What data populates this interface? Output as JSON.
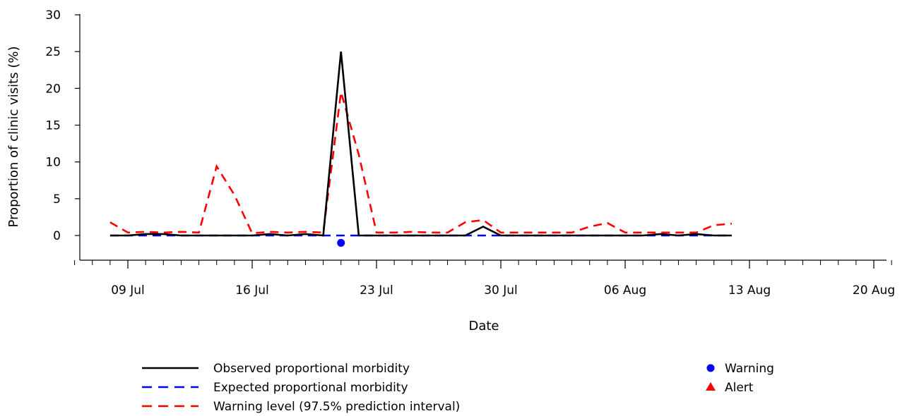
{
  "chart_data": {
    "type": "line",
    "xlabel": "Date",
    "ylabel": "Proportion of clinic visits (%)",
    "ylim": [
      -3,
      31
    ],
    "yticks": [
      0,
      5,
      10,
      15,
      20,
      25,
      30
    ],
    "xlim": [
      "2018-07-06",
      "2018-08-21"
    ],
    "xticks": [
      {
        "date": "2018-07-09",
        "label": "09 Jul"
      },
      {
        "date": "2018-07-16",
        "label": "16 Jul"
      },
      {
        "date": "2018-07-23",
        "label": "23 Jul"
      },
      {
        "date": "2018-07-30",
        "label": "30 Jul"
      },
      {
        "date": "2018-08-06",
        "label": "06 Aug"
      },
      {
        "date": "2018-08-13",
        "label": "13 Aug"
      },
      {
        "date": "2018-08-20",
        "label": "20 Aug"
      }
    ],
    "grid": false,
    "legend_position": "bottom",
    "x": [
      "2018-07-08",
      "2018-07-09",
      "2018-07-10",
      "2018-07-11",
      "2018-07-12",
      "2018-07-13",
      "2018-07-14",
      "2018-07-15",
      "2018-07-16",
      "2018-07-17",
      "2018-07-18",
      "2018-07-19",
      "2018-07-20",
      "2018-07-21",
      "2018-07-22",
      "2018-07-23",
      "2018-07-24",
      "2018-07-25",
      "2018-07-26",
      "2018-07-27",
      "2018-07-28",
      "2018-07-29",
      "2018-07-30",
      "2018-07-31",
      "2018-08-01",
      "2018-08-02",
      "2018-08-03",
      "2018-08-04",
      "2018-08-05",
      "2018-08-06",
      "2018-08-07",
      "2018-08-08",
      "2018-08-09",
      "2018-08-10",
      "2018-08-11",
      "2018-08-12"
    ],
    "series": [
      {
        "name": "Observed proportional morbidity",
        "color": "#000000",
        "dash": "solid",
        "values": [
          0,
          0,
          0.2,
          0.2,
          0,
          0,
          0,
          0,
          0,
          0.2,
          0,
          0.2,
          0,
          25,
          0,
          0,
          0,
          0,
          0,
          0,
          0,
          1.2,
          0,
          0,
          0,
          0,
          0,
          0,
          0,
          0,
          0,
          0.2,
          0,
          0.2,
          0,
          0
        ]
      },
      {
        "name": "Expected proportional morbidity",
        "color": "#0000ff",
        "dash": "dashed",
        "values": [
          0,
          0,
          0,
          0,
          0,
          0,
          0,
          0,
          0,
          0,
          0,
          0,
          0,
          0,
          0,
          0,
          0,
          0,
          0,
          0,
          0,
          0,
          0,
          0,
          0,
          0,
          0,
          0,
          0,
          0,
          0,
          0,
          0,
          0,
          0,
          0
        ]
      },
      {
        "name": "Warning level (97.5% prediction interval)",
        "color": "#ff0000",
        "dash": "dashed",
        "values": [
          1.8,
          0.4,
          0.5,
          0.4,
          0.5,
          0.4,
          9.4,
          5.5,
          0.3,
          0.5,
          0.4,
          0.5,
          0.4,
          19.5,
          11,
          0.4,
          0.4,
          0.5,
          0.4,
          0.4,
          1.8,
          2.1,
          0.4,
          0.4,
          0.4,
          0.4,
          0.4,
          1.2,
          1.7,
          0.4,
          0.4,
          0.4,
          0.4,
          0.4,
          1.4,
          1.6
        ]
      }
    ],
    "markers": [
      {
        "type": "Warning",
        "shape": "circle",
        "color": "#0000ff",
        "x": "2018-07-21",
        "y": -1
      }
    ],
    "legend": {
      "lines": [
        {
          "label": "Observed proportional morbidity",
          "color": "#000000",
          "dash": "solid"
        },
        {
          "label": "Expected proportional morbidity",
          "color": "#0000ff",
          "dash": "dashed"
        },
        {
          "label": "Warning level (97.5% prediction interval)",
          "color": "#ff0000",
          "dash": "dashed"
        }
      ],
      "markers": [
        {
          "label": "Warning",
          "shape": "circle",
          "color": "#0000ff"
        },
        {
          "label": "Alert",
          "shape": "triangle",
          "color": "#ff0000"
        }
      ]
    }
  }
}
